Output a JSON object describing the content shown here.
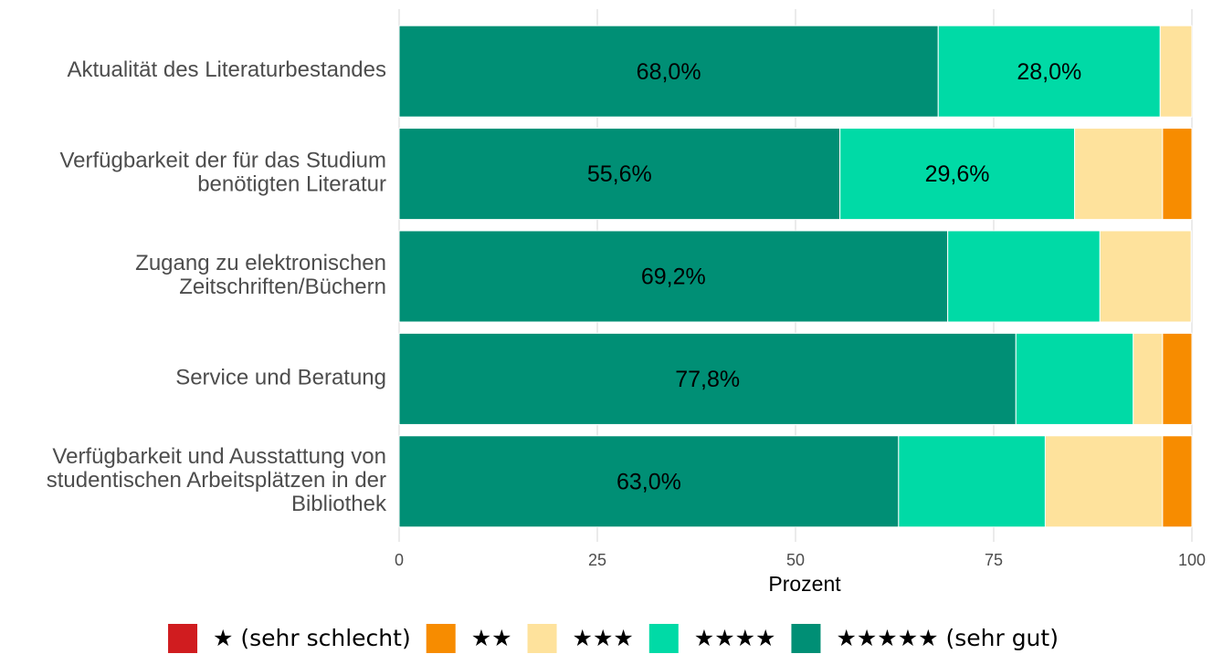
{
  "chart_data": {
    "type": "stacked-barh",
    "categories": [
      "Aktualität des Literaturbestandes",
      "Verfügbarkeit der für das Studium\nbenötigten Literatur",
      "Zugang zu elektronischen\nZeitschriften/Büchern",
      "Service und Beratung",
      "Verfügbarkeit und Ausstattung von\nstudentischen Arbeitsplätzen in der\nBibliothek"
    ],
    "series": [
      {
        "name": "★ (sehr schlecht)",
        "color": "#d01c1f",
        "values": [
          0,
          0,
          0,
          0,
          0
        ]
      },
      {
        "name": "★★",
        "color": "#f78c00",
        "values": [
          0,
          3.7,
          0,
          3.7,
          3.7
        ]
      },
      {
        "name": "★★★",
        "color": "#fee29c",
        "values": [
          4.0,
          11.1,
          11.5,
          3.7,
          14.8
        ]
      },
      {
        "name": "★★★★",
        "color": "#00daa6",
        "values": [
          28.0,
          29.6,
          19.2,
          14.8,
          18.5
        ],
        "value_labels": [
          "28,0%",
          "29,6%",
          null,
          null,
          null
        ]
      },
      {
        "name": "★★★★★ (sehr gut)",
        "color": "#008f75",
        "values": [
          68.0,
          55.6,
          69.2,
          77.8,
          63.0
        ],
        "value_labels": [
          "68,0%",
          "55,6%",
          "69,2%",
          "77,8%",
          "63,0%"
        ]
      }
    ],
    "xlabel": "Prozent",
    "xlim": [
      0,
      100
    ],
    "xticks": [
      0,
      25,
      50,
      75,
      100
    ],
    "grid": true,
    "legend": "bottom"
  }
}
